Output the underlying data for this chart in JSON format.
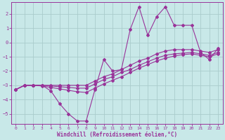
{
  "xlabel": "Windchill (Refroidissement éolien,°C)",
  "background_color": "#c8e8e8",
  "grid_color": "#aacccc",
  "line_color": "#993399",
  "x_values": [
    0,
    1,
    2,
    3,
    4,
    5,
    6,
    7,
    8,
    9,
    10,
    11,
    12,
    13,
    14,
    15,
    16,
    17,
    18,
    19,
    20,
    21,
    22,
    23
  ],
  "line1_y": [
    -3.3,
    -3.0,
    -3.0,
    -3.0,
    -3.4,
    -4.3,
    -5.0,
    -5.5,
    -5.5,
    -3.3,
    -1.2,
    -2.0,
    -1.9,
    0.9,
    2.5,
    0.5,
    1.8,
    2.5,
    1.2,
    1.2,
    1.2,
    -0.7,
    -1.2,
    -0.4
  ],
  "line2_y": [
    -3.3,
    -3.0,
    -3.0,
    -3.0,
    -3.0,
    -3.0,
    -3.0,
    -3.0,
    -3.0,
    -2.7,
    -2.4,
    -2.2,
    -1.9,
    -1.6,
    -1.3,
    -1.1,
    -0.8,
    -0.6,
    -0.5,
    -0.5,
    -0.5,
    -0.6,
    -0.7,
    -0.5
  ],
  "line3_y": [
    -3.3,
    -3.0,
    -3.0,
    -3.0,
    -3.05,
    -3.1,
    -3.15,
    -3.2,
    -3.2,
    -2.9,
    -2.6,
    -2.4,
    -2.1,
    -1.9,
    -1.6,
    -1.35,
    -1.1,
    -0.9,
    -0.8,
    -0.75,
    -0.7,
    -0.8,
    -0.9,
    -0.7
  ],
  "line4_y": [
    -3.3,
    -3.0,
    -3.0,
    -3.05,
    -3.15,
    -3.25,
    -3.35,
    -3.45,
    -3.5,
    -3.2,
    -2.9,
    -2.65,
    -2.4,
    -2.1,
    -1.8,
    -1.55,
    -1.3,
    -1.1,
    -0.95,
    -0.85,
    -0.8,
    -0.9,
    -1.0,
    -0.8
  ],
  "ylim": [
    -5.7,
    2.8
  ],
  "xlim": [
    -0.5,
    23.5
  ],
  "yticks": [
    -5,
    -4,
    -3,
    -2,
    -1,
    0,
    1,
    2
  ],
  "xticks": [
    0,
    1,
    2,
    3,
    4,
    5,
    6,
    7,
    8,
    9,
    10,
    11,
    12,
    13,
    14,
    15,
    16,
    17,
    18,
    19,
    20,
    21,
    22,
    23
  ],
  "markersize": 2.0,
  "linewidth": 0.8
}
